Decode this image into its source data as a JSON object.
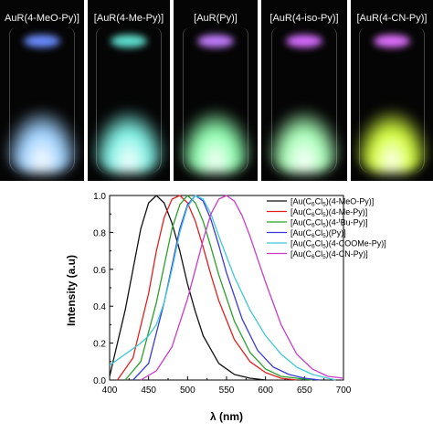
{
  "photos": [
    {
      "label": "AuR(4-MeO-Py)]",
      "glow": "#9fd2ff",
      "cap": "#6a8cff"
    },
    {
      "label": "[AuR(4-Me-Py)]",
      "glow": "#7ff3e6",
      "cap": "#5fe0d0"
    },
    {
      "label": "[AuR(Py)]",
      "glow": "#8fffb0",
      "cap": "#c27cff"
    },
    {
      "label": "[AuR(4-iso-Py)]",
      "glow": "#a8ffb8",
      "cap": "#d56cff"
    },
    {
      "label": "[AuR(4-CN-Py)]",
      "glow": "#d6ff3c",
      "cap": "#e070ff"
    }
  ],
  "chart_data": {
    "type": "line",
    "xlabel": "λ (nm)",
    "ylabel": "Intensity (a.u)",
    "xlim": [
      400,
      700
    ],
    "ylim": [
      0,
      1.0
    ],
    "xticks": [
      400,
      450,
      500,
      550,
      600,
      650,
      700
    ],
    "yticks": [
      "0.0",
      "0.2",
      "0.4",
      "0.6",
      "0.8",
      "1.0"
    ],
    "legend_position": "top-right",
    "series": [
      {
        "name": "[Au(C6Cl5)(4-MeO-Py)]",
        "name_parts": [
          [
            "[Au(C",
            "n"
          ],
          [
            "6",
            "sub"
          ],
          [
            "Cl",
            "n"
          ],
          [
            "5",
            "sub"
          ],
          [
            ")(4-MeO-Py)]",
            "n"
          ]
        ],
        "color": "#111111",
        "x": [
          400,
          420,
          440,
          450,
          460,
          470,
          480,
          490,
          500,
          510,
          520,
          540,
          560,
          580,
          600
        ],
        "y": [
          0.02,
          0.38,
          0.82,
          0.96,
          1.0,
          0.96,
          0.85,
          0.7,
          0.52,
          0.37,
          0.24,
          0.09,
          0.03,
          0.01,
          0.0
        ]
      },
      {
        "name": "[Au(C6Cl5)(4-Me-Py)]",
        "name_parts": [
          [
            "[Au(C",
            "n"
          ],
          [
            "6",
            "sub"
          ],
          [
            "Cl",
            "n"
          ],
          [
            "5",
            "sub"
          ],
          [
            ")(4-Me-Py)]",
            "n"
          ]
        ],
        "color": "#e02020",
        "x": [
          410,
          430,
          450,
          460,
          470,
          480,
          490,
          500,
          510,
          520,
          530,
          540,
          560,
          580,
          600,
          620,
          640
        ],
        "y": [
          0.0,
          0.12,
          0.47,
          0.7,
          0.88,
          0.98,
          1.0,
          0.96,
          0.86,
          0.72,
          0.57,
          0.43,
          0.22,
          0.1,
          0.04,
          0.01,
          0.0
        ]
      },
      {
        "name": "[Au(C6Cl5)(4-tBu-Py)]",
        "name_parts": [
          [
            "[Au(C",
            "n"
          ],
          [
            "6",
            "sub"
          ],
          [
            "Cl",
            "n"
          ],
          [
            "5",
            "sub"
          ],
          [
            ")(4-",
            "n"
          ],
          [
            "t",
            "sup"
          ],
          [
            "Bu-Py)]",
            "n"
          ]
        ],
        "color": "#2aa02a",
        "x": [
          420,
          440,
          460,
          470,
          480,
          490,
          500,
          510,
          520,
          530,
          540,
          560,
          580,
          600,
          620,
          640,
          660
        ],
        "y": [
          0.0,
          0.1,
          0.42,
          0.62,
          0.82,
          0.95,
          1.0,
          0.96,
          0.86,
          0.72,
          0.57,
          0.32,
          0.15,
          0.06,
          0.02,
          0.01,
          0.0
        ]
      },
      {
        "name": "[Au(C6Cl5)(Py)]",
        "name_parts": [
          [
            "[Au(C",
            "n"
          ],
          [
            "6",
            "sub"
          ],
          [
            "Cl",
            "n"
          ],
          [
            "5",
            "sub"
          ],
          [
            ")(Py)]",
            "n"
          ]
        ],
        "color": "#3a3ad8",
        "x": [
          430,
          450,
          470,
          480,
          490,
          500,
          510,
          520,
          530,
          540,
          550,
          570,
          590,
          610,
          630,
          650,
          670
        ],
        "y": [
          0.0,
          0.09,
          0.42,
          0.62,
          0.82,
          0.95,
          1.0,
          0.97,
          0.87,
          0.73,
          0.58,
          0.33,
          0.16,
          0.07,
          0.03,
          0.01,
          0.0
        ]
      },
      {
        "name": "[Au(C6Cl5)(4-COOMe-Py)]",
        "name_parts": [
          [
            "[Au(C",
            "n"
          ],
          [
            "6",
            "sub"
          ],
          [
            "Cl",
            "n"
          ],
          [
            "5",
            "sub"
          ],
          [
            ")(4-COOMe-Py)]",
            "n"
          ]
        ],
        "color": "#40c8d8",
        "x": [
          400,
          410,
          420,
          430,
          440,
          450,
          460,
          470,
          480,
          490,
          500,
          510,
          520,
          530,
          540,
          560,
          580,
          600,
          620,
          640,
          660,
          680,
          690
        ],
        "y": [
          0.08,
          0.11,
          0.14,
          0.17,
          0.2,
          0.24,
          0.3,
          0.42,
          0.6,
          0.8,
          0.94,
          1.0,
          0.98,
          0.9,
          0.78,
          0.56,
          0.38,
          0.24,
          0.14,
          0.07,
          0.03,
          0.01,
          0.0
        ]
      },
      {
        "name": "[Au(C6Cl5)(4-CN-Py)]",
        "name_parts": [
          [
            "[Au(C",
            "n"
          ],
          [
            "6",
            "sub"
          ],
          [
            "Cl",
            "n"
          ],
          [
            "5",
            "sub"
          ],
          [
            ")(4-CN-Py)]",
            "n"
          ]
        ],
        "color": "#c83cc8",
        "x": [
          440,
          460,
          480,
          500,
          510,
          520,
          530,
          540,
          550,
          560,
          570,
          580,
          600,
          620,
          640,
          660,
          680,
          700
        ],
        "y": [
          0.0,
          0.05,
          0.18,
          0.44,
          0.6,
          0.76,
          0.9,
          0.98,
          1.0,
          0.97,
          0.89,
          0.78,
          0.53,
          0.3,
          0.14,
          0.06,
          0.02,
          0.01
        ]
      }
    ]
  }
}
